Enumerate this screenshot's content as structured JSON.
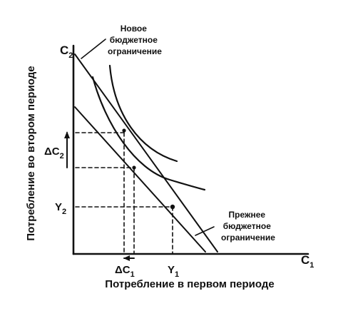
{
  "axes": {
    "x_label": "Потребление в первом периоде",
    "y_label": "Потребление во втором периоде",
    "x_end": {
      "main": "C",
      "sub": "1"
    },
    "y_end": {
      "main": "C",
      "sub": "2"
    }
  },
  "budget_lines": {
    "new": [
      "Новое",
      "бюджетное",
      "ограничение"
    ],
    "old": [
      "Прежнее",
      "бюджетное",
      "ограничение"
    ]
  },
  "markers": {
    "y2": {
      "main": "Y",
      "sub": "2"
    },
    "y1": {
      "main": "Y",
      "sub": "1"
    },
    "delta_c2": {
      "main": "ΔC",
      "sub": "2"
    },
    "delta_c1": {
      "main": "ΔC",
      "sub": "1"
    }
  }
}
